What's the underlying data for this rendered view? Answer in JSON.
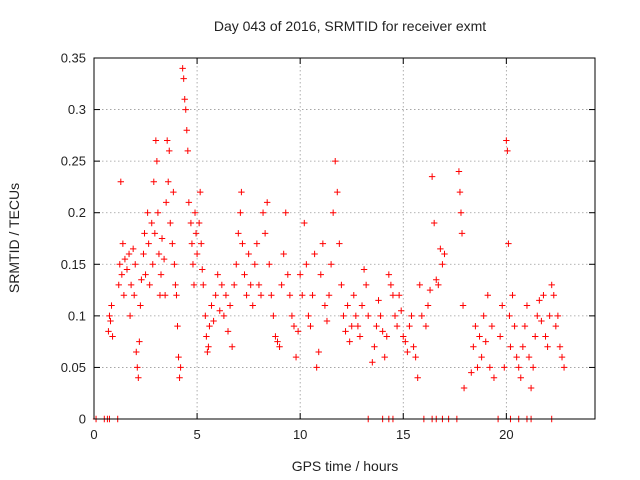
{
  "chart_data": {
    "type": "scatter",
    "title": "Day 043 of 2016, SRMTID for receiver exmt",
    "xlabel": "GPS time / hours",
    "ylabel": "SRMTID / TECUs",
    "xlim": [
      0,
      24.3
    ],
    "ylim": [
      0,
      0.35
    ],
    "xticks": [
      0,
      5,
      10,
      15,
      20
    ],
    "xtick_labels": [
      "0",
      "5",
      "10",
      "15",
      "20"
    ],
    "yticks": [
      0,
      0.05,
      0.1,
      0.15,
      0.2,
      0.25,
      0.3,
      0.35
    ],
    "ytick_labels": [
      "0",
      "0.05",
      "0.1",
      "0.15",
      "0.2",
      "0.25",
      "0.3",
      "0.35"
    ],
    "grid": true,
    "marker": "+",
    "color": "#ff0000",
    "series": [
      {
        "name": "SRMTID",
        "points": [
          [
            0.1,
            0
          ],
          [
            0.5,
            0
          ],
          [
            0.65,
            0
          ],
          [
            0.75,
            0
          ],
          [
            1.15,
            0
          ],
          [
            0.7,
            0.085
          ],
          [
            0.75,
            0.1
          ],
          [
            0.8,
            0.095
          ],
          [
            0.85,
            0.11
          ],
          [
            0.9,
            0.08
          ],
          [
            1.2,
            0.13
          ],
          [
            1.25,
            0.15
          ],
          [
            1.3,
            0.23
          ],
          [
            1.35,
            0.14
          ],
          [
            1.4,
            0.17
          ],
          [
            1.45,
            0.12
          ],
          [
            1.5,
            0.155
          ],
          [
            1.6,
            0.145
          ],
          [
            1.7,
            0.16
          ],
          [
            1.75,
            0.1
          ],
          [
            1.8,
            0.13
          ],
          [
            1.9,
            0.165
          ],
          [
            1.95,
            0.12
          ],
          [
            2.0,
            0.15
          ],
          [
            2.05,
            0.065
          ],
          [
            2.1,
            0.05
          ],
          [
            2.15,
            0.04
          ],
          [
            2.2,
            0.075
          ],
          [
            2.25,
            0.11
          ],
          [
            2.3,
            0.135
          ],
          [
            2.4,
            0.16
          ],
          [
            2.45,
            0.18
          ],
          [
            2.5,
            0.14
          ],
          [
            2.6,
            0.2
          ],
          [
            2.65,
            0.17
          ],
          [
            2.7,
            0.13
          ],
          [
            2.8,
            0.19
          ],
          [
            2.85,
            0.15
          ],
          [
            2.9,
            0.23
          ],
          [
            2.95,
            0.18
          ],
          [
            3.0,
            0.27
          ],
          [
            3.05,
            0.25
          ],
          [
            3.1,
            0.2
          ],
          [
            3.15,
            0.16
          ],
          [
            3.2,
            0.12
          ],
          [
            3.25,
            0.14
          ],
          [
            3.3,
            0.175
          ],
          [
            3.4,
            0.155
          ],
          [
            3.45,
            0.12
          ],
          [
            3.5,
            0.21
          ],
          [
            3.55,
            0.27
          ],
          [
            3.6,
            0.23
          ],
          [
            3.65,
            0.26
          ],
          [
            3.7,
            0.19
          ],
          [
            3.8,
            0.17
          ],
          [
            3.85,
            0.22
          ],
          [
            3.9,
            0.15
          ],
          [
            3.95,
            0.13
          ],
          [
            4.0,
            0.12
          ],
          [
            4.05,
            0.09
          ],
          [
            4.1,
            0.06
          ],
          [
            4.15,
            0.04
          ],
          [
            4.2,
            0.05
          ],
          [
            4.3,
            0.34
          ],
          [
            4.35,
            0.33
          ],
          [
            4.4,
            0.31
          ],
          [
            4.45,
            0.3
          ],
          [
            4.5,
            0.28
          ],
          [
            4.55,
            0.26
          ],
          [
            4.6,
            0.21
          ],
          [
            4.7,
            0.19
          ],
          [
            4.75,
            0.17
          ],
          [
            4.8,
            0.15
          ],
          [
            4.85,
            0.13
          ],
          [
            4.9,
            0.2
          ],
          [
            4.95,
            0.18
          ],
          [
            5.0,
            0.16
          ],
          [
            5.1,
            0.19
          ],
          [
            5.15,
            0.22
          ],
          [
            5.2,
            0.17
          ],
          [
            5.25,
            0.145
          ],
          [
            5.3,
            0.13
          ],
          [
            5.4,
            0.1
          ],
          [
            5.45,
            0.08
          ],
          [
            5.5,
            0.065
          ],
          [
            5.55,
            0.07
          ],
          [
            5.6,
            0.09
          ],
          [
            5.7,
            0.11
          ],
          [
            5.8,
            0.095
          ],
          [
            5.9,
            0.12
          ],
          [
            6.0,
            0.14
          ],
          [
            6.1,
            0.105
          ],
          [
            6.2,
            0.13
          ],
          [
            6.3,
            0.1
          ],
          [
            6.4,
            0.12
          ],
          [
            6.5,
            0.085
          ],
          [
            6.6,
            0.11
          ],
          [
            6.7,
            0.07
          ],
          [
            6.8,
            0.13
          ],
          [
            6.9,
            0.15
          ],
          [
            7.0,
            0.18
          ],
          [
            7.1,
            0.2
          ],
          [
            7.15,
            0.22
          ],
          [
            7.2,
            0.17
          ],
          [
            7.3,
            0.14
          ],
          [
            7.4,
            0.12
          ],
          [
            7.5,
            0.16
          ],
          [
            7.6,
            0.13
          ],
          [
            7.7,
            0.11
          ],
          [
            7.8,
            0.15
          ],
          [
            7.9,
            0.17
          ],
          [
            8.0,
            0.13
          ],
          [
            8.1,
            0.12
          ],
          [
            8.2,
            0.2
          ],
          [
            8.3,
            0.18
          ],
          [
            8.4,
            0.21
          ],
          [
            8.5,
            0.15
          ],
          [
            8.6,
            0.12
          ],
          [
            8.7,
            0.1
          ],
          [
            8.8,
            0.08
          ],
          [
            8.9,
            0.075
          ],
          [
            9.0,
            0.07
          ],
          [
            9.1,
            0.13
          ],
          [
            9.2,
            0.16
          ],
          [
            9.3,
            0.2
          ],
          [
            9.4,
            0.14
          ],
          [
            9.5,
            0.12
          ],
          [
            9.6,
            0.1
          ],
          [
            9.7,
            0.09
          ],
          [
            9.8,
            0.06
          ],
          [
            9.9,
            0.085
          ],
          [
            10.0,
            0.14
          ],
          [
            10.1,
            0.12
          ],
          [
            10.2,
            0.19
          ],
          [
            10.3,
            0.15
          ],
          [
            10.4,
            0.1
          ],
          [
            10.5,
            0.09
          ],
          [
            10.6,
            0.12
          ],
          [
            10.7,
            0.16
          ],
          [
            10.8,
            0.05
          ],
          [
            10.9,
            0.065
          ],
          [
            11.0,
            0.14
          ],
          [
            11.1,
            0.17
          ],
          [
            11.2,
            0.11
          ],
          [
            11.3,
            0.095
          ],
          [
            11.4,
            0.12
          ],
          [
            11.5,
            0.15
          ],
          [
            11.6,
            0.2
          ],
          [
            11.7,
            0.25
          ],
          [
            11.8,
            0.22
          ],
          [
            11.9,
            0.17
          ],
          [
            12.0,
            0.13
          ],
          [
            12.1,
            0.1
          ],
          [
            12.2,
            0.085
          ],
          [
            12.3,
            0.11
          ],
          [
            12.4,
            0.075
          ],
          [
            12.5,
            0.09
          ],
          [
            12.6,
            0.12
          ],
          [
            12.7,
            0.1
          ],
          [
            12.8,
            0.09
          ],
          [
            12.9,
            0.08
          ],
          [
            13.0,
            0.11
          ],
          [
            13.1,
            0.145
          ],
          [
            13.2,
            0.13
          ],
          [
            13.3,
            0.1
          ],
          [
            13.3,
            0
          ],
          [
            14.0,
            0
          ],
          [
            14.3,
            0
          ],
          [
            14.5,
            0
          ],
          [
            13.5,
            0.055
          ],
          [
            13.6,
            0.07
          ],
          [
            13.7,
            0.09
          ],
          [
            13.8,
            0.115
          ],
          [
            13.9,
            0.1
          ],
          [
            14.0,
            0.085
          ],
          [
            14.1,
            0.06
          ],
          [
            14.2,
            0.08
          ],
          [
            14.3,
            0.14
          ],
          [
            14.4,
            0.13
          ],
          [
            14.5,
            0.12
          ],
          [
            14.6,
            0.1
          ],
          [
            14.7,
            0.09
          ],
          [
            14.8,
            0.12
          ],
          [
            14.9,
            0.105
          ],
          [
            15.0,
            0.08
          ],
          [
            15.1,
            0.075
          ],
          [
            15.2,
            0.065
          ],
          [
            15.3,
            0.09
          ],
          [
            15.4,
            0.1
          ],
          [
            15.5,
            0.07
          ],
          [
            15.6,
            0.06
          ],
          [
            15.7,
            0.04
          ],
          [
            15.8,
            0.13
          ],
          [
            15.9,
            0.1
          ],
          [
            16.0,
            0
          ],
          [
            16.4,
            0
          ],
          [
            16.6,
            0
          ],
          [
            16.9,
            0
          ],
          [
            17.2,
            0
          ],
          [
            17.6,
            0
          ],
          [
            16.1,
            0.09
          ],
          [
            16.2,
            0.11
          ],
          [
            16.3,
            0.125
          ],
          [
            16.4,
            0.235
          ],
          [
            16.5,
            0.19
          ],
          [
            16.6,
            0.135
          ],
          [
            16.7,
            0.13
          ],
          [
            16.8,
            0.165
          ],
          [
            16.9,
            0.15
          ],
          [
            17.0,
            0.16
          ],
          [
            17.7,
            0.24
          ],
          [
            17.75,
            0.22
          ],
          [
            17.8,
            0.2
          ],
          [
            17.85,
            0.18
          ],
          [
            17.9,
            0.11
          ],
          [
            17.95,
            0.03
          ],
          [
            18.3,
            0.045
          ],
          [
            18.4,
            0.07
          ],
          [
            18.5,
            0.09
          ],
          [
            18.6,
            0.05
          ],
          [
            18.7,
            0.08
          ],
          [
            18.8,
            0.06
          ],
          [
            18.9,
            0.1
          ],
          [
            19.0,
            0.075
          ],
          [
            19.1,
            0.12
          ],
          [
            19.2,
            0.05
          ],
          [
            19.3,
            0.09
          ],
          [
            19.4,
            0.04
          ],
          [
            19.6,
            0
          ],
          [
            20.2,
            0
          ],
          [
            20.6,
            0
          ],
          [
            21.0,
            0
          ],
          [
            21.2,
            0
          ],
          [
            22.2,
            0
          ],
          [
            19.7,
            0.08
          ],
          [
            19.8,
            0.11
          ],
          [
            19.9,
            0.05
          ],
          [
            20.0,
            0.27
          ],
          [
            20.05,
            0.26
          ],
          [
            20.1,
            0.17
          ],
          [
            20.15,
            0.1
          ],
          [
            20.2,
            0.07
          ],
          [
            20.3,
            0.12
          ],
          [
            20.4,
            0.09
          ],
          [
            20.5,
            0.06
          ],
          [
            20.6,
            0.05
          ],
          [
            20.7,
            0.04
          ],
          [
            20.8,
            0.07
          ],
          [
            20.9,
            0.09
          ],
          [
            21.0,
            0.11
          ],
          [
            21.1,
            0.06
          ],
          [
            21.2,
            0.03
          ],
          [
            21.3,
            0.05
          ],
          [
            21.4,
            0.08
          ],
          [
            21.5,
            0.1
          ],
          [
            21.6,
            0.115
          ],
          [
            21.7,
            0.095
          ],
          [
            21.8,
            0.12
          ],
          [
            21.9,
            0.08
          ],
          [
            22.0,
            0.07
          ],
          [
            22.1,
            0.1
          ],
          [
            22.2,
            0.13
          ],
          [
            22.3,
            0.12
          ],
          [
            22.4,
            0.09
          ],
          [
            22.5,
            0.1
          ],
          [
            22.6,
            0.07
          ],
          [
            22.7,
            0.06
          ],
          [
            22.8,
            0.05
          ]
        ]
      }
    ]
  }
}
